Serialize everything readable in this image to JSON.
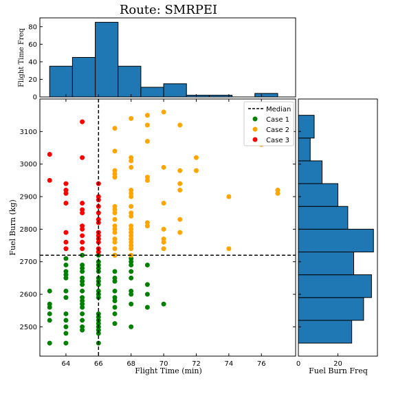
{
  "title": "Route: SMRPEI",
  "scatter": {
    "xlabel": "Flight Time (min)",
    "ylabel": "Fuel Burn (kg)",
    "xlim": [
      62.4,
      78.1
    ],
    "ylim": [
      2410,
      3200
    ],
    "xticks": [
      64,
      66,
      68,
      70,
      72,
      74,
      76
    ],
    "yticks": [
      2500,
      2600,
      2700,
      2800,
      2900,
      3000,
      3100
    ],
    "median_x": 66,
    "median_y": 2720
  },
  "legend": {
    "position": "upper-right",
    "median_label": "Median",
    "entries": [
      {
        "label": "Case 1",
        "color": "#008000"
      },
      {
        "label": "Case 2",
        "color": "#ffa500"
      },
      {
        "label": "Case 3",
        "color": "#ff0000"
      }
    ]
  },
  "top_hist": {
    "ylabel": "Flight Time Freq",
    "ylim": [
      0,
      90
    ],
    "yticks": [
      0,
      20,
      40,
      60,
      80
    ],
    "bins": [
      {
        "x0": 63,
        "x1": 64.4,
        "count": 35
      },
      {
        "x0": 64.4,
        "x1": 65.8,
        "count": 45
      },
      {
        "x0": 65.8,
        "x1": 67.2,
        "count": 85
      },
      {
        "x0": 67.2,
        "x1": 68.6,
        "count": 35
      },
      {
        "x0": 68.6,
        "x1": 70.0,
        "count": 11
      },
      {
        "x0": 70.0,
        "x1": 71.4,
        "count": 15
      },
      {
        "x0": 71.4,
        "x1": 72.8,
        "count": 2
      },
      {
        "x0": 72.8,
        "x1": 74.2,
        "count": 2
      },
      {
        "x0": 74.2,
        "x1": 75.6,
        "count": 0
      },
      {
        "x0": 75.6,
        "x1": 77.0,
        "count": 4
      }
    ]
  },
  "right_hist": {
    "xlabel": "Fuel Burn Freq",
    "xlim": [
      0,
      40
    ],
    "xticks": [
      0,
      20
    ],
    "bins": [
      {
        "y0": 2450,
        "y1": 2520,
        "count": 27
      },
      {
        "y0": 2520,
        "y1": 2590,
        "count": 33
      },
      {
        "y0": 2590,
        "y1": 2660,
        "count": 37
      },
      {
        "y0": 2660,
        "y1": 2730,
        "count": 28
      },
      {
        "y0": 2730,
        "y1": 2800,
        "count": 38
      },
      {
        "y0": 2800,
        "y1": 2870,
        "count": 25
      },
      {
        "y0": 2870,
        "y1": 2940,
        "count": 20
      },
      {
        "y0": 2940,
        "y1": 3010,
        "count": 12
      },
      {
        "y0": 3010,
        "y1": 3080,
        "count": 6
      },
      {
        "y0": 3080,
        "y1": 3150,
        "count": 8
      }
    ]
  },
  "chart_data": {
    "type": "scatter",
    "title": "Route: SMRPEI",
    "xlabel": "Flight Time (min)",
    "ylabel": "Fuel Burn (kg)",
    "xlim": [
      62.4,
      78.1
    ],
    "ylim": [
      2410,
      3200
    ],
    "series": [
      {
        "name": "Case 1",
        "color": "#008000",
        "points": [
          [
            63,
            2450
          ],
          [
            63,
            2520
          ],
          [
            63,
            2540
          ],
          [
            63,
            2560
          ],
          [
            63,
            2570
          ],
          [
            63,
            2610
          ],
          [
            64,
            2450
          ],
          [
            64,
            2480
          ],
          [
            64,
            2500
          ],
          [
            64,
            2520
          ],
          [
            64,
            2540
          ],
          [
            64,
            2590
          ],
          [
            64,
            2610
          ],
          [
            64,
            2650
          ],
          [
            64,
            2660
          ],
          [
            64,
            2670
          ],
          [
            64,
            2690
          ],
          [
            64,
            2710
          ],
          [
            65,
            2490
          ],
          [
            65,
            2500
          ],
          [
            65,
            2520
          ],
          [
            65,
            2540
          ],
          [
            65,
            2560
          ],
          [
            65,
            2570
          ],
          [
            65,
            2580
          ],
          [
            65,
            2590
          ],
          [
            65,
            2610
          ],
          [
            65,
            2630
          ],
          [
            65,
            2640
          ],
          [
            65,
            2650
          ],
          [
            65,
            2670
          ],
          [
            65,
            2680
          ],
          [
            65,
            2690
          ],
          [
            65,
            2720
          ],
          [
            66,
            2450
          ],
          [
            66,
            2480
          ],
          [
            66,
            2490
          ],
          [
            66,
            2500
          ],
          [
            66,
            2510
          ],
          [
            66,
            2520
          ],
          [
            66,
            2530
          ],
          [
            66,
            2540
          ],
          [
            66,
            2590
          ],
          [
            66,
            2600
          ],
          [
            66,
            2610
          ],
          [
            66,
            2630
          ],
          [
            66,
            2640
          ],
          [
            66,
            2650
          ],
          [
            66,
            2670
          ],
          [
            66,
            2680
          ],
          [
            66,
            2690
          ],
          [
            66,
            2700
          ],
          [
            66,
            2720
          ],
          [
            67,
            2510
          ],
          [
            67,
            2540
          ],
          [
            67,
            2560
          ],
          [
            67,
            2580
          ],
          [
            67,
            2590
          ],
          [
            67,
            2610
          ],
          [
            67,
            2640
          ],
          [
            67,
            2650
          ],
          [
            67,
            2670
          ],
          [
            67,
            2720
          ],
          [
            68,
            2500
          ],
          [
            68,
            2570
          ],
          [
            68,
            2600
          ],
          [
            68,
            2610
          ],
          [
            68,
            2650
          ],
          [
            68,
            2670
          ],
          [
            68,
            2690
          ],
          [
            68,
            2700
          ],
          [
            68,
            2710
          ],
          [
            69,
            2560
          ],
          [
            69,
            2600
          ],
          [
            69,
            2630
          ],
          [
            69,
            2690
          ],
          [
            70,
            2570
          ]
        ]
      },
      {
        "name": "Case 2",
        "color": "#ffa500",
        "points": [
          [
            67,
            2720
          ],
          [
            67,
            2740
          ],
          [
            67,
            2760
          ],
          [
            67,
            2770
          ],
          [
            67,
            2790
          ],
          [
            67,
            2800
          ],
          [
            67,
            2810
          ],
          [
            67,
            2830
          ],
          [
            67,
            2850
          ],
          [
            67,
            2860
          ],
          [
            67,
            2870
          ],
          [
            67,
            2960
          ],
          [
            67,
            2970
          ],
          [
            67,
            2980
          ],
          [
            67,
            3040
          ],
          [
            67,
            3110
          ],
          [
            68,
            2720
          ],
          [
            68,
            2740
          ],
          [
            68,
            2750
          ],
          [
            68,
            2760
          ],
          [
            68,
            2770
          ],
          [
            68,
            2780
          ],
          [
            68,
            2790
          ],
          [
            68,
            2800
          ],
          [
            68,
            2810
          ],
          [
            68,
            2840
          ],
          [
            68,
            2850
          ],
          [
            68,
            2870
          ],
          [
            68,
            2900
          ],
          [
            68,
            2910
          ],
          [
            68,
            2920
          ],
          [
            68,
            2990
          ],
          [
            68,
            3010
          ],
          [
            68,
            3020
          ],
          [
            68,
            3140
          ],
          [
            69,
            2810
          ],
          [
            69,
            2820
          ],
          [
            69,
            2950
          ],
          [
            69,
            2960
          ],
          [
            69,
            3070
          ],
          [
            69,
            3120
          ],
          [
            69,
            3150
          ],
          [
            70,
            2740
          ],
          [
            70,
            2760
          ],
          [
            70,
            2770
          ],
          [
            70,
            2800
          ],
          [
            70,
            2880
          ],
          [
            70,
            2990
          ],
          [
            70,
            3160
          ],
          [
            71,
            2790
          ],
          [
            71,
            2830
          ],
          [
            71,
            2920
          ],
          [
            71,
            2940
          ],
          [
            71,
            2980
          ],
          [
            71,
            3120
          ],
          [
            72,
            2980
          ],
          [
            72,
            3020
          ],
          [
            74,
            2740
          ],
          [
            74,
            2900
          ],
          [
            76,
            3060
          ],
          [
            77,
            2910
          ],
          [
            77,
            2920
          ]
        ]
      },
      {
        "name": "Case 3",
        "color": "#ff0000",
        "points": [
          [
            63,
            2950
          ],
          [
            63,
            3030
          ],
          [
            64,
            2740
          ],
          [
            64,
            2760
          ],
          [
            64,
            2790
          ],
          [
            64,
            2880
          ],
          [
            64,
            2910
          ],
          [
            64,
            2920
          ],
          [
            64,
            2940
          ],
          [
            65,
            2740
          ],
          [
            65,
            2760
          ],
          [
            65,
            2780
          ],
          [
            65,
            2800
          ],
          [
            65,
            2810
          ],
          [
            65,
            2850
          ],
          [
            65,
            2860
          ],
          [
            65,
            2880
          ],
          [
            65,
            3020
          ],
          [
            65,
            3130
          ],
          [
            66,
            2730
          ],
          [
            66,
            2740
          ],
          [
            66,
            2760
          ],
          [
            66,
            2770
          ],
          [
            66,
            2780
          ],
          [
            66,
            2790
          ],
          [
            66,
            2820
          ],
          [
            66,
            2830
          ],
          [
            66,
            2850
          ],
          [
            66,
            2870
          ],
          [
            66,
            2890
          ],
          [
            66,
            2900
          ],
          [
            66,
            2940
          ]
        ]
      }
    ]
  }
}
